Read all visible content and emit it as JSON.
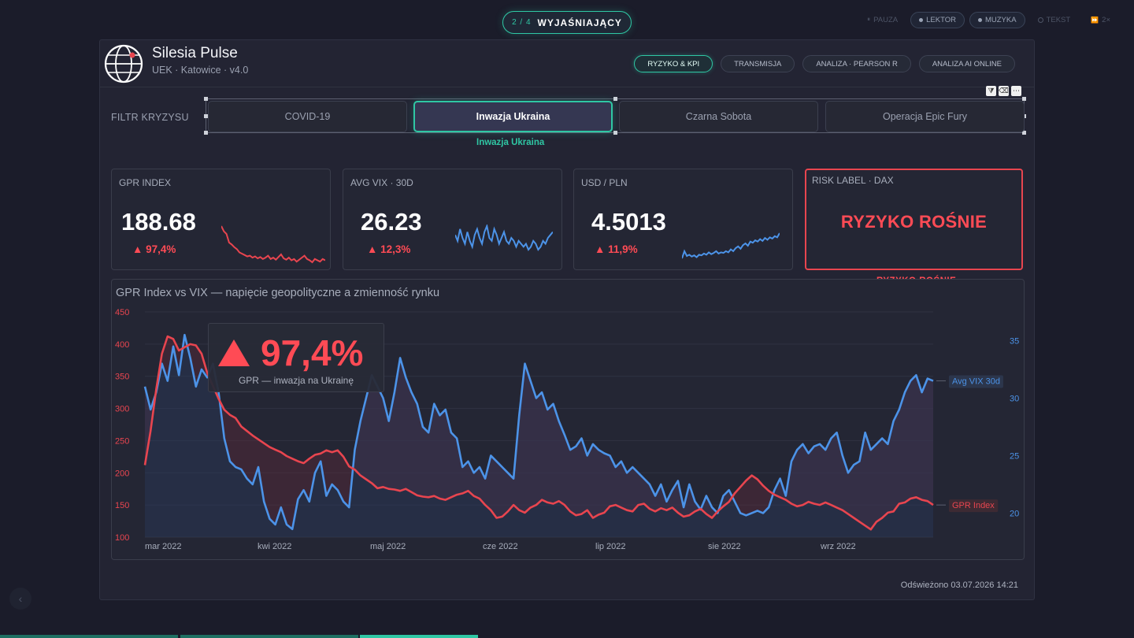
{
  "step": {
    "index": "2 / 4",
    "label": "WYJAŚNIAJĄCY"
  },
  "controls": [
    {
      "label": "PAUZA",
      "icon": "pause-icon",
      "on": false
    },
    {
      "label": "LEKTOR",
      "icon": "dot-icon",
      "on": true
    },
    {
      "label": "MUZYKA",
      "icon": "dot-icon",
      "on": true
    },
    {
      "label": "TEKST",
      "icon": "ring-icon",
      "on": false
    },
    {
      "label": "2×",
      "icon": "speed-icon",
      "on": false
    }
  ],
  "app": {
    "title": "Silesia Pulse",
    "subtitle": "UEK · Katowice · v4.0"
  },
  "nav": [
    {
      "label": "RYZYKO & KPI",
      "active": true
    },
    {
      "label": "TRANSMISJA",
      "active": false
    },
    {
      "label": "ANALIZA · PEARSON R",
      "active": false
    },
    {
      "label": "ANALIZA AI ONLINE",
      "active": false
    }
  ],
  "filter": {
    "label": "FILTR KRYZYSU",
    "options": [
      "COVID-19",
      "Inwazja Ukraina",
      "Czarna Sobota",
      "Operacja Epic Fury"
    ],
    "selected": "Inwazja Ukraina"
  },
  "kpis": [
    {
      "title": "GPR INDEX",
      "value": "188.68",
      "delta": "▲ 97,4%",
      "spark_color": "#e8454f",
      "spark": [
        240,
        232,
        228,
        215,
        212,
        208,
        205,
        200,
        198,
        196,
        194,
        195,
        192,
        194,
        191,
        193,
        190,
        192,
        195,
        190,
        192,
        189,
        193,
        197,
        191,
        189,
        192,
        188,
        190,
        186,
        189,
        192,
        195,
        190,
        188,
        185,
        190,
        188,
        186,
        190,
        188
      ]
    },
    {
      "title": "AVG VIX · 30D",
      "value": "26.23",
      "delta": "▲ 12,3%",
      "spark_color": "#4c93e8",
      "spark": [
        29,
        27,
        31,
        28,
        26,
        30,
        27,
        25,
        29,
        31,
        28,
        26,
        30,
        32,
        28,
        27,
        31,
        29,
        26,
        28,
        30,
        27,
        26,
        28,
        27,
        25,
        27,
        26,
        25,
        26,
        24,
        25,
        27,
        26,
        24,
        25,
        27,
        26,
        28,
        29,
        30
      ]
    },
    {
      "title": "USD / PLN",
      "value": "4.5013",
      "delta": "▲ 11,9%",
      "spark_color": "#4c93e8",
      "spark": [
        4.1,
        4.22,
        4.14,
        4.16,
        4.13,
        4.15,
        4.12,
        4.16,
        4.15,
        4.18,
        4.16,
        4.2,
        4.17,
        4.19,
        4.22,
        4.18,
        4.2,
        4.19,
        4.22,
        4.2,
        4.25,
        4.22,
        4.27,
        4.3,
        4.26,
        4.32,
        4.35,
        4.31,
        4.38,
        4.36,
        4.4,
        4.38,
        4.42,
        4.39,
        4.44,
        4.41,
        4.45,
        4.43,
        4.47,
        4.45,
        4.52
      ]
    },
    {
      "title": "RISK LABEL · DAX",
      "value": "RYZYKO ROŚNIE"
    }
  ],
  "risk_note": "RYZYKO ROŚNIE",
  "slice_note": "Inwazja Ukraina",
  "chart_data": {
    "type": "line",
    "title": "GPR Index vs VIX — napięcie geopolityczne a zmienność rynku",
    "x_labels": [
      "mar 2022",
      "kwi 2022",
      "maj 2022",
      "cze 2022",
      "lip 2022",
      "sie 2022",
      "wrz 2022"
    ],
    "y_left": {
      "ticks": [
        100,
        150,
        200,
        250,
        300,
        350,
        400,
        450
      ],
      "range": [
        100,
        450
      ],
      "color": "#e8454f"
    },
    "y_right": {
      "ticks": [
        20,
        25,
        30,
        35
      ],
      "range": [
        17.9,
        37.5
      ],
      "color": "#4c93e8"
    },
    "series": [
      {
        "name": "GPR Index",
        "axis": "left",
        "color": "#e8454f",
        "values": [
          212,
          265,
          330,
          385,
          412,
          408,
          390,
          395,
          400,
          398,
          385,
          355,
          335,
          315,
          298,
          290,
          285,
          272,
          265,
          258,
          252,
          246,
          240,
          236,
          232,
          226,
          222,
          218,
          215,
          222,
          228,
          230,
          235,
          232,
          235,
          225,
          210,
          205,
          196,
          190,
          184,
          176,
          178,
          175,
          174,
          172,
          175,
          170,
          165,
          163,
          162,
          164,
          160,
          158,
          162,
          166,
          168,
          172,
          164,
          160,
          150,
          142,
          130,
          132,
          140,
          150,
          142,
          138,
          146,
          150,
          158,
          154,
          152,
          156,
          150,
          140,
          134,
          136,
          142,
          130,
          135,
          138,
          148,
          150,
          146,
          142,
          140,
          150,
          152,
          144,
          140,
          145,
          142,
          146,
          138,
          132,
          134,
          140,
          144,
          136,
          130,
          140,
          148,
          155,
          168,
          178,
          188,
          196,
          190,
          180,
          172,
          166,
          162,
          158,
          152,
          148,
          150,
          155,
          152,
          150,
          154,
          150,
          146,
          142,
          136,
          130,
          124,
          118,
          112,
          124,
          130,
          138,
          140,
          152,
          154,
          160,
          162,
          158,
          156,
          150
        ]
      },
      {
        "name": "Avg VIX 30d",
        "axis": "right",
        "color": "#4c93e8",
        "values": [
          31.0,
          29.0,
          30.5,
          33.0,
          31.5,
          34.5,
          32.0,
          35.5,
          33.5,
          31.0,
          32.5,
          31.8,
          33.0,
          30.5,
          26.5,
          24.5,
          24.0,
          23.8,
          23.0,
          22.5,
          24.0,
          21.0,
          19.5,
          19.0,
          20.5,
          19.0,
          18.6,
          21.2,
          22.0,
          21.0,
          23.5,
          24.5,
          21.5,
          22.5,
          22.0,
          21.0,
          20.5,
          25.5,
          28.0,
          30.0,
          32.0,
          31.0,
          30.0,
          28.0,
          30.5,
          33.5,
          31.8,
          30.5,
          29.5,
          27.5,
          27.0,
          29.5,
          28.5,
          29.0,
          27.0,
          26.5,
          24.0,
          24.5,
          23.5,
          24.0,
          23.0,
          25.0,
          24.5,
          24.0,
          23.5,
          23.0,
          28.5,
          33.0,
          31.5,
          30.0,
          30.5,
          29.0,
          29.5,
          28.0,
          26.8,
          25.5,
          25.8,
          26.5,
          25.0,
          26.0,
          25.5,
          25.2,
          25.0,
          24.0,
          24.5,
          23.5,
          24.0,
          23.5,
          23.0,
          22.5,
          21.5,
          22.5,
          21.0,
          22.0,
          22.8,
          20.5,
          22.5,
          21.0,
          20.3,
          21.5,
          20.5,
          20.0,
          21.5,
          22.0,
          21.0,
          20.0,
          19.8,
          20.0,
          20.2,
          20.0,
          20.5,
          22.0,
          23.0,
          21.5,
          24.5,
          25.5,
          26.0,
          25.2,
          25.8,
          26.0,
          25.5,
          26.5,
          27.0,
          25.0,
          23.5,
          24.2,
          24.5,
          27.0,
          25.5,
          26.0,
          26.5,
          26.0,
          28.0,
          29.0,
          30.5,
          31.5,
          32.0,
          30.5,
          31.7,
          31.5
        ]
      }
    ],
    "annotation": {
      "value": "97,4%",
      "text": "GPR — inwazja na Ukrainę"
    }
  },
  "refreshed": "Odświeżono 03.07.2026 14:21"
}
